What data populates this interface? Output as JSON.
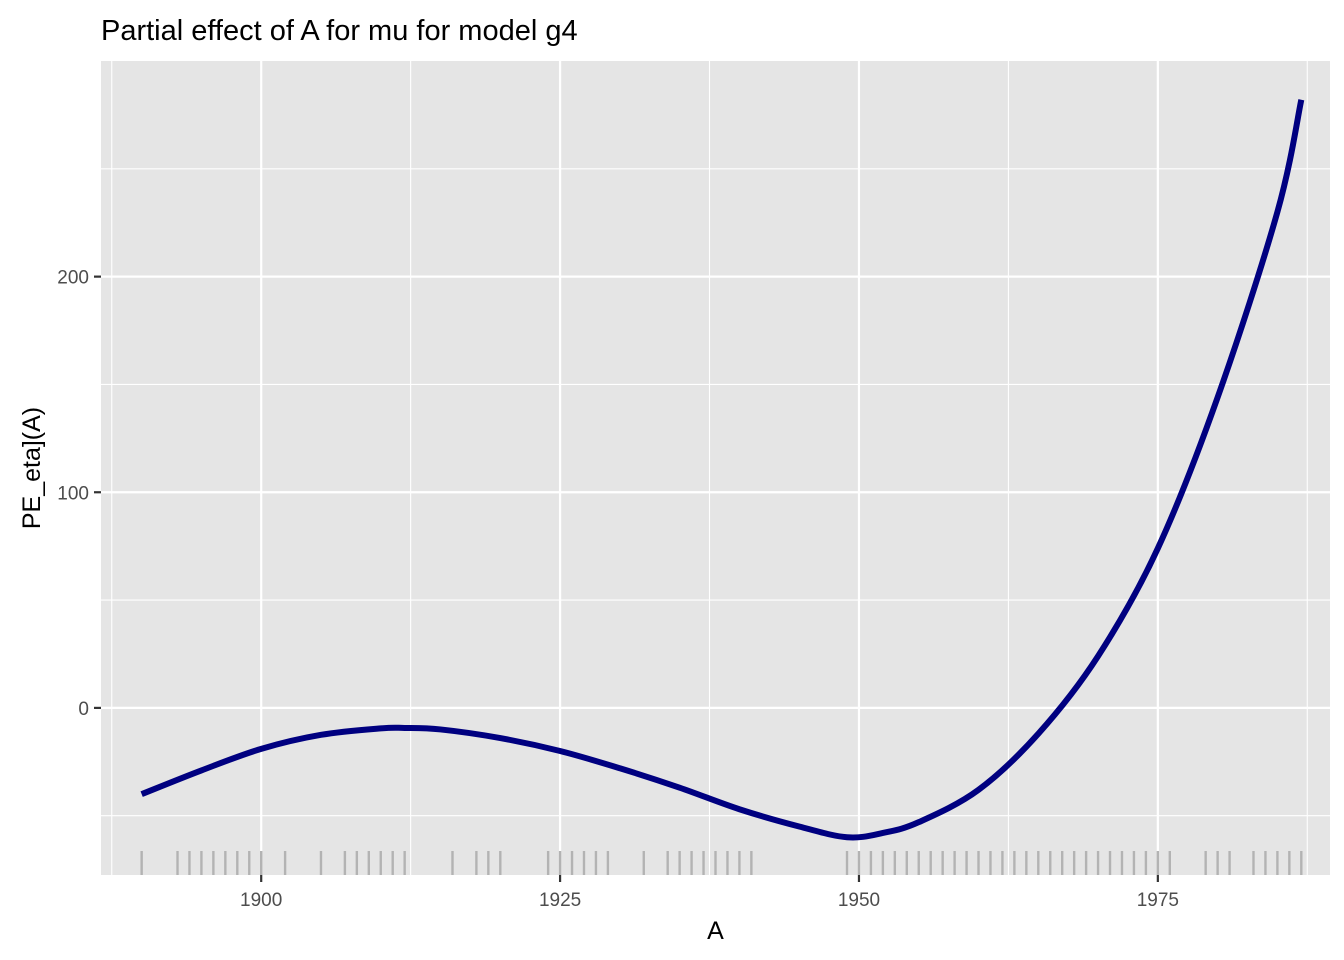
{
  "chart_data": {
    "type": "line",
    "title": "Partial effect of A for mu for model g4",
    "xlabel": "A",
    "ylabel": "PE_eta](A)",
    "xlim": [
      1886.6,
      1989.4
    ],
    "ylim": [
      -77.5,
      300.0
    ],
    "xticks": [
      1900,
      1925,
      1950,
      1975
    ],
    "yticks": [
      0,
      100,
      200
    ],
    "x_minor_gridlines": [
      1887.5,
      1912.5,
      1937.5,
      1962.5,
      1987.5
    ],
    "y_minor_gridlines": [
      -50,
      50,
      150,
      250
    ],
    "grid": true,
    "legend": "none",
    "series": [
      {
        "color": "#000080",
        "x": [
          1890,
          1895,
          1900,
          1905,
          1910,
          1912,
          1915,
          1920,
          1925,
          1930,
          1935,
          1940,
          1945,
          1949,
          1952,
          1955,
          1960,
          1965,
          1970,
          1975,
          1980,
          1985,
          1987
        ],
        "y": [
          -40,
          -29,
          -19,
          -12.5,
          -9.5,
          -9.3,
          -10,
          -14,
          -20,
          -28,
          -37,
          -47,
          -55,
          -60,
          -58,
          -53,
          -38,
          -12,
          24,
          74,
          144,
          230,
          282
        ]
      }
    ],
    "rug": {
      "color": "#b3b3b3",
      "x": [
        1890,
        1893,
        1894,
        1895,
        1896,
        1897,
        1898,
        1899,
        1900,
        1902,
        1905,
        1907,
        1908,
        1909,
        1910,
        1911,
        1912,
        1916,
        1918,
        1919,
        1920,
        1924,
        1925,
        1926,
        1927,
        1928,
        1929,
        1932,
        1934,
        1935,
        1936,
        1937,
        1938,
        1939,
        1940,
        1941,
        1949,
        1950,
        1951,
        1952,
        1953,
        1954,
        1955,
        1956,
        1957,
        1958,
        1959,
        1960,
        1961,
        1962,
        1963,
        1964,
        1965,
        1966,
        1967,
        1968,
        1969,
        1970,
        1971,
        1972,
        1973,
        1974,
        1975,
        1976,
        1979,
        1980,
        1981,
        1983,
        1984,
        1985,
        1986,
        1987
      ]
    },
    "colors": {
      "panel_background": "#e5e5e5",
      "gridline": "#ffffff",
      "line": "#000080",
      "rug": "#b3b3b3",
      "tick": "#333333",
      "tick_label": "#4d4d4d"
    }
  }
}
